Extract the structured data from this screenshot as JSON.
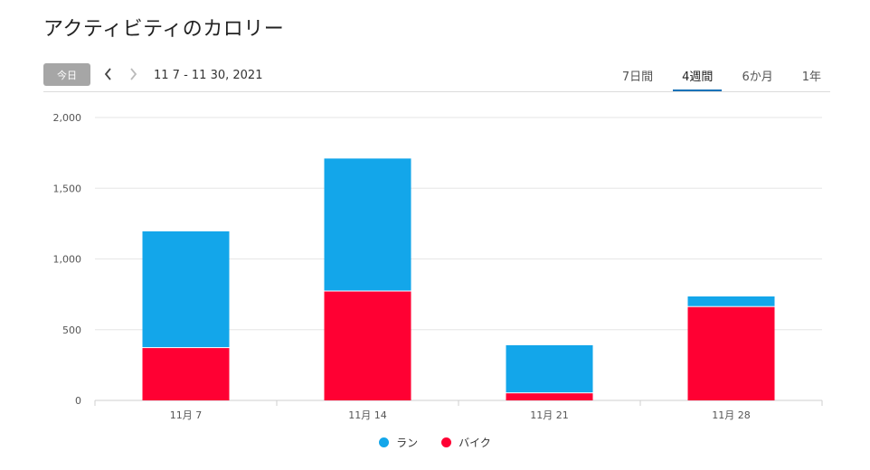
{
  "page": {
    "title": "アクティビティのカロリー"
  },
  "toolbar": {
    "today_label": "今日",
    "date_range": "11 7 - 11 30, 2021",
    "periods": [
      "7日間",
      "4週間",
      "6か月",
      "1年"
    ],
    "active_period": "4週間"
  },
  "colors": {
    "run": "#13a6ea",
    "bike": "#ff0033",
    "grid": "#e6e6e6",
    "axis": "#cfcfcf"
  },
  "chart_data": {
    "type": "bar",
    "stacked": true,
    "categories": [
      "11月 7",
      "11月 14",
      "11月 21",
      "11月 28"
    ],
    "series": [
      {
        "name": "バイク",
        "values": [
          370,
          770,
          50,
          660
        ]
      },
      {
        "name": "ラン",
        "values": [
          825,
          940,
          340,
          75
        ]
      }
    ],
    "ylim": [
      0,
      2000
    ],
    "yticks": [
      0,
      500,
      1000,
      1500,
      2000
    ],
    "ytick_labels": [
      "0",
      "500",
      "1,000",
      "1,500",
      "2,000"
    ],
    "grid": true,
    "legend": "bottom-center"
  },
  "legend": {
    "items": [
      {
        "label": "ラン",
        "color": "#13a6ea"
      },
      {
        "label": "バイク",
        "color": "#ff0033"
      }
    ]
  }
}
